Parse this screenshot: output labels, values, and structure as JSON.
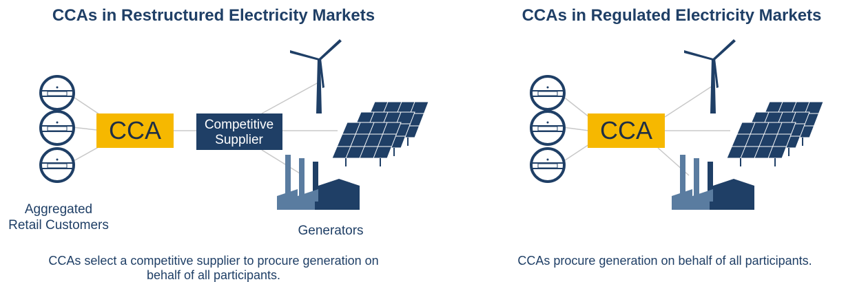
{
  "panels": [
    {
      "title": "CCAs in Restructured Electricity Markets",
      "cca": "CCA",
      "supplier": [
        "Competitive",
        "Supplier"
      ],
      "customers_label": [
        "Aggregated",
        "Retail Customers"
      ],
      "generators_label": "Generators",
      "caption": [
        "CCAs select a competitive supplier to procure generation on",
        "behalf of all participants."
      ]
    },
    {
      "title": "CCAs in Regulated Electricity Markets",
      "cca": "CCA",
      "caption": [
        "CCAs procure generation on behalf of all participants."
      ]
    }
  ]
}
